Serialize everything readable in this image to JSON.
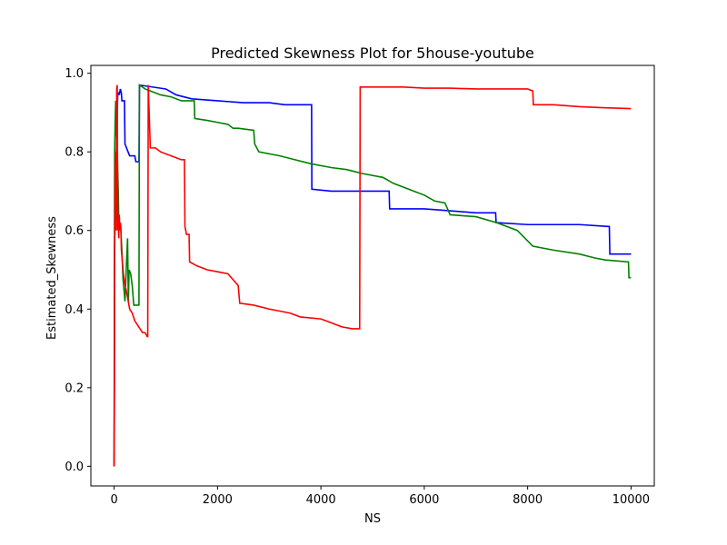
{
  "chart_data": {
    "type": "line",
    "title": "Predicted Skewness Plot for 5house-youtube",
    "xlabel": "NS",
    "ylabel": "Estimated_Skewness",
    "xlim": [
      -450,
      10450
    ],
    "ylim": [
      -0.05,
      1.02
    ],
    "xticks": [
      0,
      2000,
      4000,
      6000,
      8000,
      10000
    ],
    "xtick_labels": [
      "0",
      "2000",
      "4000",
      "6000",
      "8000",
      "10000"
    ],
    "yticks": [
      0.0,
      0.2,
      0.4,
      0.6,
      0.8,
      1.0
    ],
    "ytick_labels": [
      "0.0",
      "0.2",
      "0.4",
      "0.6",
      "0.8",
      "1.0"
    ],
    "grid": false,
    "legend": "none",
    "series": [
      {
        "color": "#0000ff",
        "points": [
          [
            0,
            0.0
          ],
          [
            5,
            0.2
          ],
          [
            10,
            0.55
          ],
          [
            20,
            0.66
          ],
          [
            30,
            0.7
          ],
          [
            40,
            0.77
          ],
          [
            55,
            0.86
          ],
          [
            70,
            0.95
          ],
          [
            90,
            0.95
          ],
          [
            100,
            0.945
          ],
          [
            120,
            0.96
          ],
          [
            140,
            0.95
          ],
          [
            150,
            0.93
          ],
          [
            200,
            0.93
          ],
          [
            210,
            0.82
          ],
          [
            300,
            0.79
          ],
          [
            400,
            0.79
          ],
          [
            420,
            0.775
          ],
          [
            480,
            0.775
          ],
          [
            490,
            0.97
          ],
          [
            1000,
            0.96
          ],
          [
            1200,
            0.945
          ],
          [
            1500,
            0.935
          ],
          [
            2000,
            0.93
          ],
          [
            2500,
            0.925
          ],
          [
            3000,
            0.925
          ],
          [
            3300,
            0.92
          ],
          [
            3820,
            0.92
          ],
          [
            3825,
            0.705
          ],
          [
            4200,
            0.7
          ],
          [
            5000,
            0.7
          ],
          [
            5320,
            0.7
          ],
          [
            5330,
            0.655
          ],
          [
            6000,
            0.655
          ],
          [
            6500,
            0.65
          ],
          [
            7000,
            0.645
          ],
          [
            7380,
            0.645
          ],
          [
            7390,
            0.62
          ],
          [
            8000,
            0.615
          ],
          [
            9000,
            0.615
          ],
          [
            9580,
            0.61
          ],
          [
            9590,
            0.54
          ],
          [
            10000,
            0.54
          ]
        ]
      },
      {
        "color": "#008000",
        "points": [
          [
            0,
            0.0
          ],
          [
            5,
            0.5
          ],
          [
            10,
            0.8
          ],
          [
            20,
            0.88
          ],
          [
            30,
            0.93
          ],
          [
            40,
            0.85
          ],
          [
            50,
            0.83
          ],
          [
            60,
            0.8
          ],
          [
            70,
            0.75
          ],
          [
            80,
            0.7
          ],
          [
            90,
            0.62
          ],
          [
            110,
            0.61
          ],
          [
            130,
            0.6
          ],
          [
            150,
            0.55
          ],
          [
            170,
            0.48
          ],
          [
            190,
            0.45
          ],
          [
            210,
            0.42
          ],
          [
            240,
            0.52
          ],
          [
            260,
            0.58
          ],
          [
            275,
            0.42
          ],
          [
            290,
            0.5
          ],
          [
            320,
            0.49
          ],
          [
            350,
            0.46
          ],
          [
            380,
            0.41
          ],
          [
            480,
            0.41
          ],
          [
            490,
            0.97
          ],
          [
            600,
            0.96
          ],
          [
            700,
            0.955
          ],
          [
            900,
            0.945
          ],
          [
            1100,
            0.94
          ],
          [
            1300,
            0.93
          ],
          [
            1550,
            0.93
          ],
          [
            1560,
            0.885
          ],
          [
            1800,
            0.88
          ],
          [
            2000,
            0.875
          ],
          [
            2200,
            0.87
          ],
          [
            2300,
            0.86
          ],
          [
            2400,
            0.86
          ],
          [
            2700,
            0.855
          ],
          [
            2720,
            0.82
          ],
          [
            2800,
            0.8
          ],
          [
            3200,
            0.79
          ],
          [
            3500,
            0.78
          ],
          [
            3800,
            0.77
          ],
          [
            4200,
            0.76
          ],
          [
            4500,
            0.755
          ],
          [
            4800,
            0.745
          ],
          [
            5200,
            0.735
          ],
          [
            5400,
            0.72
          ],
          [
            5600,
            0.71
          ],
          [
            5800,
            0.7
          ],
          [
            6000,
            0.69
          ],
          [
            6200,
            0.675
          ],
          [
            6400,
            0.67
          ],
          [
            6500,
            0.64
          ],
          [
            7000,
            0.635
          ],
          [
            7400,
            0.62
          ],
          [
            7800,
            0.6
          ],
          [
            8100,
            0.56
          ],
          [
            8500,
            0.55
          ],
          [
            9000,
            0.54
          ],
          [
            9300,
            0.53
          ],
          [
            9500,
            0.525
          ],
          [
            9950,
            0.52
          ],
          [
            9960,
            0.48
          ],
          [
            10000,
            0.48
          ]
        ]
      },
      {
        "color": "#ff0000",
        "points": [
          [
            0,
            0.0
          ],
          [
            5,
            0.25
          ],
          [
            10,
            0.55
          ],
          [
            20,
            0.72
          ],
          [
            30,
            0.8
          ],
          [
            40,
            0.6
          ],
          [
            50,
            0.96
          ],
          [
            60,
            0.97
          ],
          [
            70,
            0.6
          ],
          [
            80,
            0.62
          ],
          [
            90,
            0.58
          ],
          [
            100,
            0.64
          ],
          [
            110,
            0.6
          ],
          [
            120,
            0.62
          ],
          [
            130,
            0.61
          ],
          [
            140,
            0.55
          ],
          [
            160,
            0.52
          ],
          [
            180,
            0.49
          ],
          [
            200,
            0.47
          ],
          [
            230,
            0.45
          ],
          [
            260,
            0.43
          ],
          [
            300,
            0.4
          ],
          [
            350,
            0.39
          ],
          [
            400,
            0.37
          ],
          [
            450,
            0.36
          ],
          [
            500,
            0.35
          ],
          [
            550,
            0.34
          ],
          [
            600,
            0.34
          ],
          [
            640,
            0.33
          ],
          [
            650,
            0.33
          ],
          [
            660,
            0.97
          ],
          [
            700,
            0.81
          ],
          [
            800,
            0.81
          ],
          [
            900,
            0.8
          ],
          [
            1100,
            0.79
          ],
          [
            1300,
            0.78
          ],
          [
            1360,
            0.78
          ],
          [
            1370,
            0.61
          ],
          [
            1400,
            0.59
          ],
          [
            1450,
            0.59
          ],
          [
            1460,
            0.52
          ],
          [
            1600,
            0.51
          ],
          [
            1800,
            0.5
          ],
          [
            2000,
            0.495
          ],
          [
            2200,
            0.49
          ],
          [
            2400,
            0.46
          ],
          [
            2430,
            0.415
          ],
          [
            2700,
            0.41
          ],
          [
            3000,
            0.4
          ],
          [
            3400,
            0.39
          ],
          [
            3600,
            0.38
          ],
          [
            4000,
            0.375
          ],
          [
            4200,
            0.365
          ],
          [
            4400,
            0.355
          ],
          [
            4600,
            0.35
          ],
          [
            4750,
            0.35
          ],
          [
            4760,
            0.965
          ],
          [
            5200,
            0.965
          ],
          [
            5600,
            0.965
          ],
          [
            6000,
            0.962
          ],
          [
            6500,
            0.962
          ],
          [
            7000,
            0.96
          ],
          [
            7500,
            0.96
          ],
          [
            8000,
            0.96
          ],
          [
            8100,
            0.955
          ],
          [
            8110,
            0.92
          ],
          [
            8500,
            0.92
          ],
          [
            9000,
            0.915
          ],
          [
            9500,
            0.912
          ],
          [
            10000,
            0.91
          ]
        ]
      }
    ]
  }
}
